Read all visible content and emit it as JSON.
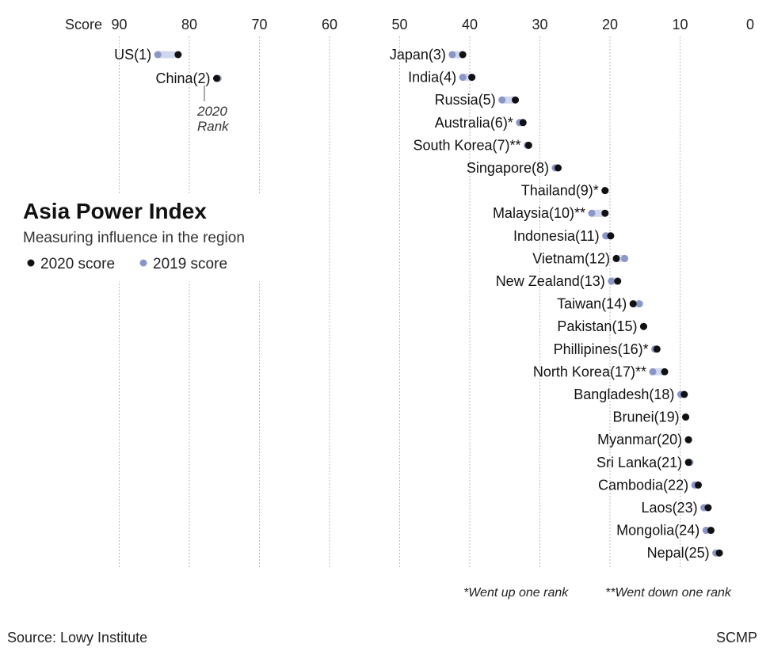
{
  "chart_data": {
    "type": "scatter",
    "title": "Asia Power Index",
    "subtitle": "Measuring influence in the region",
    "xlabel": "Score",
    "xlim": [
      0,
      90
    ],
    "x_reversed": true,
    "x_ticks": [
      "90",
      "80",
      "70",
      "60",
      "50",
      "40",
      "30",
      "20",
      "10",
      "0"
    ],
    "grid": true,
    "legend": {
      "placement": "left",
      "items": [
        {
          "name": "2020 score",
          "color": "#111111"
        },
        {
          "name": "2019 score",
          "color": "#8a96c8"
        }
      ]
    },
    "categories": [
      "US(1)",
      "China(2)",
      "Japan(3)",
      "India(4)",
      "Russia(5)",
      "Australia(6)*",
      "South Korea(7)**",
      "Singapore(8)",
      "Thailand(9)*",
      "Malaysia(10)**",
      "Indonesia(11)",
      "Vietnam(12)",
      "New Zealand(13)",
      "Taiwan(14)",
      "Pakistan(15)",
      "Phillipines(16)*",
      "North Korea(17)**",
      "Bangladesh(18)",
      "Brunei(19)",
      "Myanmar(20)",
      "Sri Lanka(21)",
      "Cambodia(22)",
      "Laos(23)",
      "Mongolia(24)",
      "Nepal(25)"
    ],
    "series": [
      {
        "name": "2020 score",
        "values": [
          81.6,
          76.1,
          41.0,
          39.7,
          33.5,
          32.4,
          31.6,
          27.4,
          20.7,
          20.7,
          19.9,
          19.1,
          18.9,
          16.7,
          15.2,
          13.3,
          12.2,
          9.4,
          9.2,
          8.8,
          8.8,
          7.4,
          6.0,
          5.6,
          4.4
        ]
      },
      {
        "name": "2019 score",
        "values": [
          84.5,
          75.9,
          42.5,
          41.0,
          35.4,
          32.9,
          31.8,
          27.8,
          20.7,
          22.6,
          20.6,
          17.9,
          19.8,
          15.8,
          15.2,
          13.6,
          13.9,
          9.9,
          9.2,
          8.8,
          8.6,
          7.9,
          6.6,
          6.3,
          4.9
        ]
      }
    ],
    "annotation": {
      "line1": "2020",
      "line2": "Rank"
    },
    "notes": [
      "*Went up one rank",
      "**Went down one rank"
    ]
  },
  "footer": {
    "source": "Source: Lowy Institute",
    "brand": "SCMP"
  },
  "colors": {
    "score_2020": "#111111",
    "score_2019": "#8a96c8",
    "range_bar": "#d0d6ec",
    "grid": "#bbbbbb"
  }
}
